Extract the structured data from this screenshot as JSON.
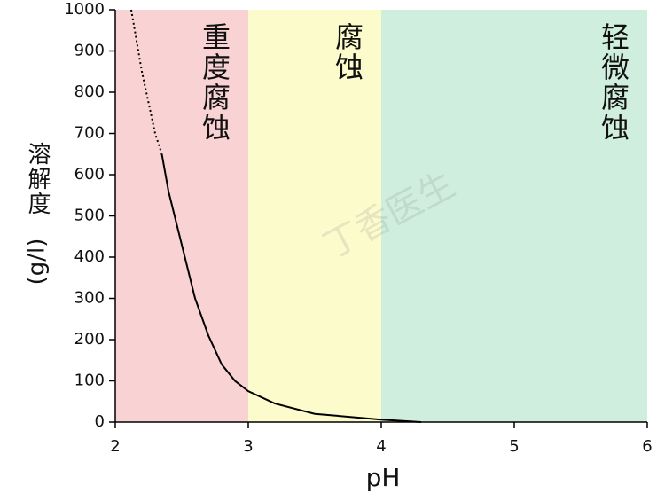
{
  "chart_data": {
    "type": "line",
    "xlabel": "pH",
    "ylabel": [
      "溶解度",
      "(g/l)"
    ],
    "watermark": "丁香医生",
    "xlim": [
      2,
      6
    ],
    "xticks": [
      2,
      3,
      4,
      5,
      6
    ],
    "ylim": [
      0,
      1000
    ],
    "yticks": [
      0,
      100,
      200,
      300,
      400,
      500,
      600,
      700,
      800,
      900,
      1000
    ],
    "regions": [
      {
        "from": 2,
        "to": 3,
        "color": "#f9d3d3",
        "label": "重度腐蚀"
      },
      {
        "from": 3,
        "to": 4,
        "color": "#fcfbcc",
        "label": "腐蚀"
      },
      {
        "from": 4,
        "to": 6,
        "color": "#cfeedd",
        "label": "轻微腐蚀"
      }
    ],
    "series": [
      {
        "color": "#000000",
        "style": "dotted",
        "x": [
          2.12,
          2.2,
          2.3,
          2.35
        ],
        "values": [
          1000,
          850,
          700,
          650
        ]
      },
      {
        "color": "#000000",
        "style": "solid",
        "x": [
          2.35,
          2.4,
          2.5,
          2.6,
          2.7,
          2.8,
          2.9,
          3.0,
          3.2,
          3.5,
          4.0,
          4.3
        ],
        "values": [
          650,
          560,
          430,
          300,
          210,
          140,
          100,
          75,
          45,
          20,
          6,
          0
        ]
      }
    ]
  }
}
